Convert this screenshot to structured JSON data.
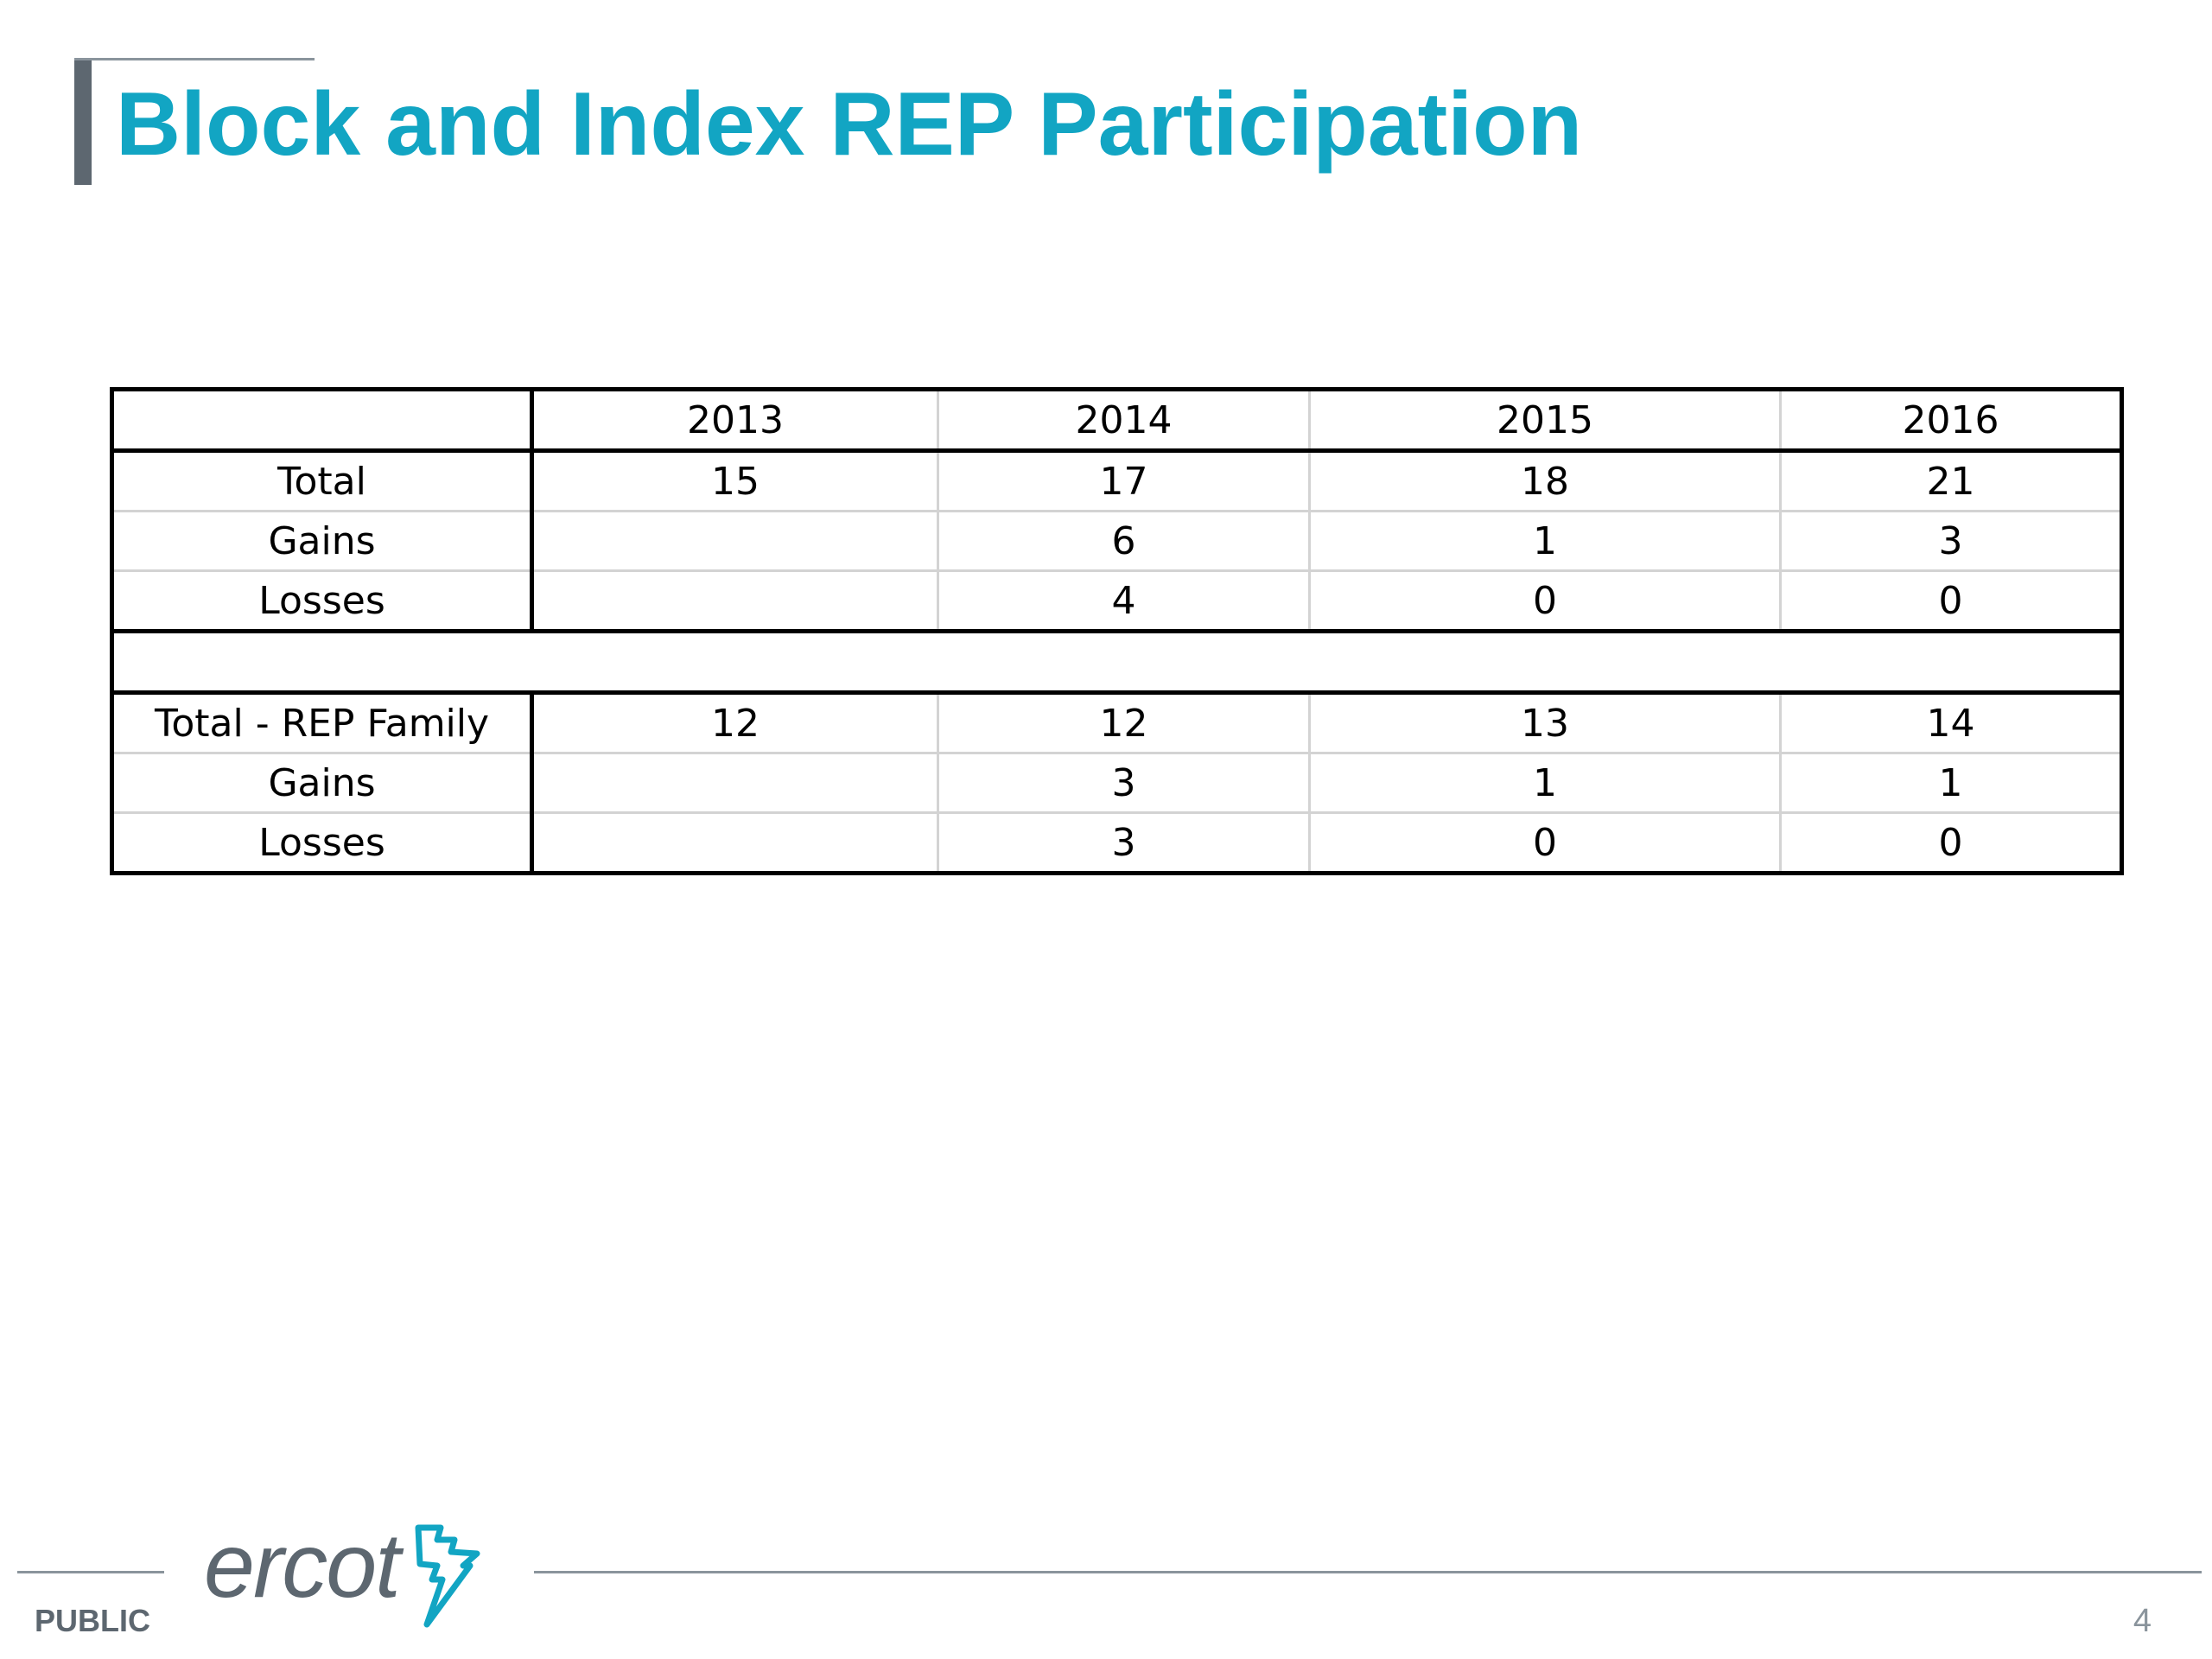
{
  "slide": {
    "title": "Block and Index REP Participation",
    "classification": "PUBLIC",
    "page_number": "4",
    "logo_text": "ercot",
    "colors": {
      "title": "#12a5c3",
      "accent_gray": "#5d6770",
      "rule_gray": "#8a949c",
      "logo_mark": "#12a5c3"
    }
  },
  "table": {
    "columns": [
      "",
      "2013",
      "2014",
      "2015",
      "2016"
    ],
    "section1": [
      [
        "Total",
        "15",
        "17",
        "18",
        "21"
      ],
      [
        "Gains",
        "",
        "6",
        "1",
        "3"
      ],
      [
        "Losses",
        "",
        "4",
        "0",
        "0"
      ]
    ],
    "section2": [
      [
        "Total - REP Family",
        "12",
        "12",
        "13",
        "14"
      ],
      [
        "Gains",
        "",
        "3",
        "1",
        "1"
      ],
      [
        "Losses",
        "",
        "3",
        "0",
        "0"
      ]
    ]
  }
}
